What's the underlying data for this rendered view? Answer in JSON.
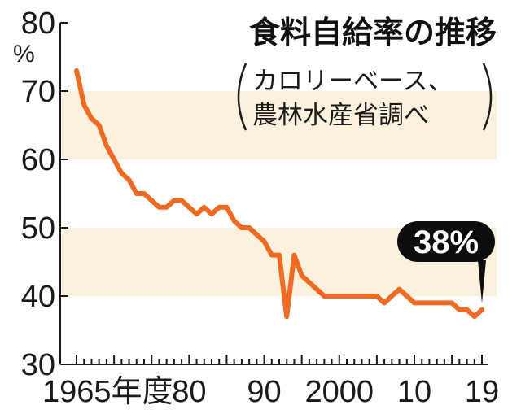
{
  "colors": {
    "line": "#ef6a22",
    "band": "#fbf1dc",
    "axis": "#1a1a1a",
    "callout_bg": "#0d0d0d",
    "callout_text": "#ffffff"
  },
  "chart_data": {
    "type": "line",
    "title": "食料自給率の推移",
    "subtitle_lines": [
      "カロリーベース、",
      "農林水産省調べ"
    ],
    "ylabel": "%",
    "xlabel": "",
    "ylim": [
      30,
      80
    ],
    "xlim": [
      1964,
      2020
    ],
    "yticks": [
      "30",
      "40",
      "50",
      "60",
      "70",
      "80"
    ],
    "xtick_labels": [
      {
        "x": 1965,
        "label": "1965年度"
      },
      {
        "x": 1980,
        "label": "80"
      },
      {
        "x": 1990,
        "label": "90"
      },
      {
        "x": 2000,
        "label": "2000"
      },
      {
        "x": 2010,
        "label": "10"
      },
      {
        "x": 2019,
        "label": "19"
      }
    ],
    "bands": [
      [
        60,
        70
      ],
      [
        40,
        50
      ]
    ],
    "grid": false,
    "callout": {
      "x": 2019,
      "label": "38%"
    },
    "series": [
      {
        "x": [
          1965,
          1966,
          1967,
          1968,
          1969,
          1970,
          1971,
          1972,
          1973,
          1974,
          1975,
          1976,
          1977,
          1978,
          1979,
          1980,
          1981,
          1982,
          1983,
          1984,
          1985,
          1986,
          1987,
          1988,
          1989,
          1990,
          1991,
          1992,
          1993,
          1994,
          1995,
          1996,
          1997,
          1998,
          1999,
          2000,
          2001,
          2002,
          2003,
          2004,
          2005,
          2006,
          2007,
          2008,
          2009,
          2010,
          2011,
          2012,
          2013,
          2014,
          2015,
          2016,
          2017,
          2018,
          2019
        ],
        "values": [
          73,
          68,
          66,
          65,
          62,
          60,
          58,
          57,
          55,
          55,
          54,
          53,
          53,
          54,
          54,
          53,
          52,
          53,
          52,
          53,
          53,
          51,
          50,
          50,
          49,
          48,
          46,
          46,
          37,
          46,
          43,
          42,
          41,
          40,
          40,
          40,
          40,
          40,
          40,
          40,
          40,
          39,
          40,
          41,
          40,
          39,
          39,
          39,
          39,
          39,
          39,
          38,
          38,
          37,
          38
        ]
      }
    ]
  }
}
